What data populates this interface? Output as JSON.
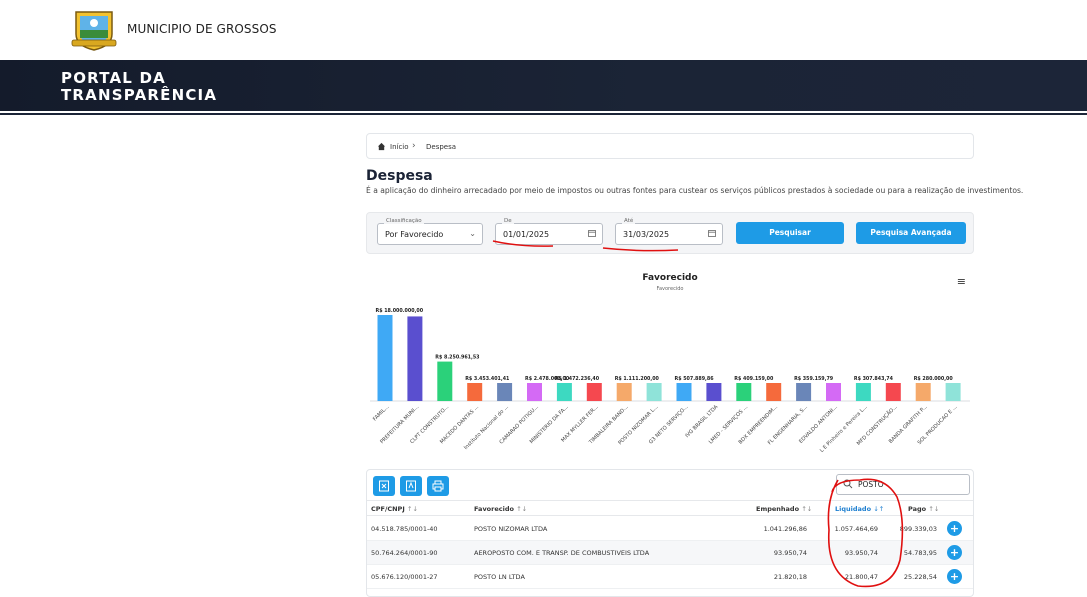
{
  "header": {
    "municipality": "MUNICIPIO DE GROSSOS",
    "portal_title_line1": "PORTAL DA",
    "portal_title_line2": "TRANSPARÊNCIA"
  },
  "breadcrumb": {
    "home": "Início",
    "current": "Despesa"
  },
  "page": {
    "title": "Despesa",
    "description": "É a aplicação do dinheiro arrecadado por meio de impostos ou outras fontes para custear os serviços públicos prestados à sociedade ou para a realização de investimentos."
  },
  "filters": {
    "classificacao_label": "Classificação",
    "classificacao_value": "Por Favorecido",
    "de_label": "De",
    "de_value": "01/01/2025",
    "ate_label": "Até",
    "ate_value": "31/03/2025",
    "search_button": "Pesquisar",
    "advanced_button": "Pesquisa Avançada"
  },
  "chart_data": {
    "type": "bar",
    "title": "Favorecido",
    "subtitle": "Favorecido",
    "categories": [
      "FAMIL...",
      "PREFEITURA MUNI...",
      "CLPT CONSTRUTO...",
      "MACEDO DANTAS ...",
      "Instituto Nacional do ...",
      "CAMARAO POTIGU...",
      "MINISTERIO DA FA...",
      "MAX MYLLER FER...",
      "TIMBALEIRA BAND...",
      "POSTO NIZOMAR L...",
      "G3 NETO SERVIÇO...",
      "IVG BRASIL LTDA",
      "LMED - SERVIÇOS ...",
      "BDX EMPREENDIM...",
      "FL ENGENHARIA, S...",
      "EDVALDO ANTONI...",
      "L E Pinheiro e Pereira L...",
      "MFD CONSTRUÇÃO...",
      "BANDA GRAFITH P...",
      "SOL PRODUCAO E ..."
    ],
    "values": [
      18000000,
      17700000,
      8250961.53,
      3453401.41,
      3050000,
      2478000,
      1472236.4,
      1200000,
      1111200,
      1057464.69,
      507889.86,
      460000,
      409159,
      380000,
      359159.79,
      320000,
      307843.74,
      300000,
      280000,
      270000
    ],
    "data_labels": [
      "R$ 18.000.000,00",
      "",
      "R$ 8.250.961,53",
      "R$ 3.453.401,41",
      "",
      "R$ 2.478.000,00",
      "R$ 1.472.236,40",
      "",
      "R$ 1.111.200,00",
      "",
      "R$ 507.889,86",
      "",
      "R$ 409.159,00",
      "",
      "R$ 359.159,79",
      "",
      "R$ 307.843,74",
      "",
      "R$ 280.000,00",
      ""
    ],
    "colors": [
      "#3fa9f5",
      "#5a4fcf",
      "#2bd17a",
      "#f56a3c",
      "#6a86b8",
      "#d46af5",
      "#3dd9c1",
      "#f5484f",
      "#f5a96a",
      "#8fe3d9",
      "#3fa9f5",
      "#5a4fcf",
      "#2bd17a",
      "#f56a3c",
      "#6a86b8",
      "#d46af5",
      "#3dd9c1",
      "#f5484f",
      "#f5a96a",
      "#8fe3d9"
    ]
  },
  "table": {
    "search_value": "POSTO",
    "columns": {
      "cpf": "CPF/CNPJ",
      "favorecido": "Favorecido",
      "empenhado": "Empenhado",
      "liquidado": "Liquidado",
      "pago": "Pago"
    },
    "rows": [
      {
        "cpf": "04.518.785/0001-40",
        "favorecido": "POSTO NIZOMAR LTDA",
        "empenhado": "1.041.296,86",
        "liquidado": "1.057.464,69",
        "pago": "899.339,03"
      },
      {
        "cpf": "50.764.264/0001-90",
        "favorecido": "AEROPOSTO COM. E TRANSP. DE COMBUSTIVEIS LTDA",
        "empenhado": "93.950,74",
        "liquidado": "93.950,74",
        "pago": "54.783,95"
      },
      {
        "cpf": "05.676.120/0001-27",
        "favorecido": "POSTO LN LTDA",
        "empenhado": "21.820,18",
        "liquidado": "21.800,47",
        "pago": "25.228,54"
      }
    ]
  }
}
